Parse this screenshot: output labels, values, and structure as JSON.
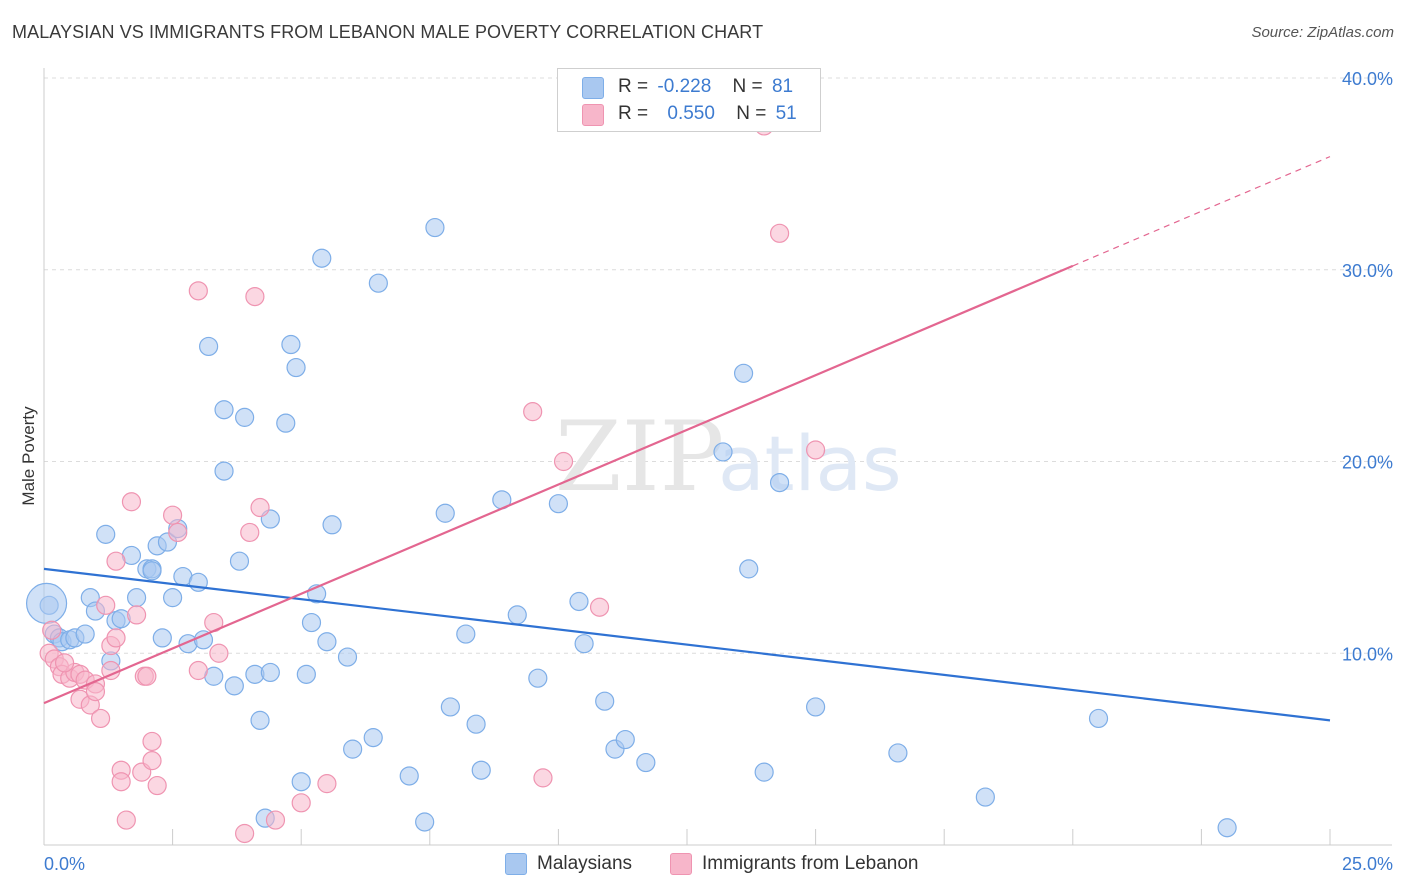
{
  "title": "MALAYSIAN VS IMMIGRANTS FROM LEBANON MALE POVERTY CORRELATION CHART",
  "source": "Source: ZipAtlas.com",
  "watermark": {
    "zip": "ZIP",
    "atlas": "atlas"
  },
  "legend": {
    "rows": [
      {
        "r_label": "R =",
        "r_value": "-0.228",
        "n_label": "N =",
        "n_value": "81"
      },
      {
        "r_label": "R =",
        "r_value": "0.550",
        "n_label": "N =",
        "n_value": "51"
      }
    ]
  },
  "bottom_legend": {
    "malaysians": "Malaysians",
    "lebanon": "Immigrants from Lebanon"
  },
  "colors": {
    "blue_fill": "#a9c8f0",
    "blue_stroke": "#7eaee8",
    "blue_line": "#2f72d3",
    "pink_fill": "#f7b6ca",
    "pink_stroke": "#ef94b1",
    "pink_line": "#e36690",
    "grid": "#dcdcdc",
    "axis_text": "#3d7bd0"
  },
  "chart_data": {
    "type": "scatter",
    "title": "MALAYSIAN VS IMMIGRANTS FROM LEBANON MALE POVERTY CORRELATION CHART",
    "xlabel": "",
    "ylabel": "Male Poverty",
    "xlim": [
      0,
      25
    ],
    "ylim": [
      0,
      40
    ],
    "x_tick_labels": [
      "0.0%",
      "25.0%"
    ],
    "y_ticks": [
      10,
      20,
      30,
      40
    ],
    "y_tick_labels": [
      "10.0%",
      "20.0%",
      "30.0%",
      "40.0%"
    ],
    "series": [
      {
        "name": "Malaysians",
        "r": -0.228,
        "n": 81,
        "trend": {
          "x0": 0,
          "y0": 14.4,
          "x1": 25,
          "y1": 6.5
        },
        "points": [
          [
            0.1,
            12.5
          ],
          [
            0.2,
            11.0
          ],
          [
            0.3,
            10.8
          ],
          [
            0.35,
            10.6
          ],
          [
            0.5,
            10.7
          ],
          [
            0.6,
            10.8
          ],
          [
            0.8,
            11.0
          ],
          [
            0.9,
            12.9
          ],
          [
            1.0,
            12.2
          ],
          [
            1.2,
            16.2
          ],
          [
            1.3,
            9.6
          ],
          [
            1.4,
            11.7
          ],
          [
            1.5,
            11.8
          ],
          [
            1.7,
            15.1
          ],
          [
            1.8,
            12.9
          ],
          [
            2.0,
            14.4
          ],
          [
            2.1,
            14.4
          ],
          [
            2.2,
            15.6
          ],
          [
            2.3,
            10.8
          ],
          [
            2.4,
            15.8
          ],
          [
            2.5,
            12.9
          ],
          [
            2.6,
            16.5
          ],
          [
            2.7,
            14.0
          ],
          [
            2.8,
            10.5
          ],
          [
            3.0,
            13.7
          ],
          [
            3.1,
            10.7
          ],
          [
            3.2,
            26.0
          ],
          [
            3.3,
            8.8
          ],
          [
            3.5,
            22.7
          ],
          [
            3.5,
            19.5
          ],
          [
            3.7,
            8.3
          ],
          [
            3.8,
            14.8
          ],
          [
            3.9,
            22.3
          ],
          [
            4.1,
            8.9
          ],
          [
            4.2,
            6.5
          ],
          [
            4.3,
            1.4
          ],
          [
            4.4,
            9.0
          ],
          [
            4.4,
            17.0
          ],
          [
            4.7,
            22.0
          ],
          [
            4.8,
            26.1
          ],
          [
            4.9,
            24.9
          ],
          [
            5.0,
            3.3
          ],
          [
            5.1,
            8.9
          ],
          [
            5.2,
            11.6
          ],
          [
            5.3,
            13.1
          ],
          [
            5.4,
            30.6
          ],
          [
            5.5,
            10.6
          ],
          [
            5.6,
            16.7
          ],
          [
            5.9,
            9.8
          ],
          [
            6.0,
            5.0
          ],
          [
            6.4,
            5.6
          ],
          [
            6.5,
            29.3
          ],
          [
            7.1,
            3.6
          ],
          [
            7.4,
            1.2
          ],
          [
            7.6,
            32.2
          ],
          [
            7.8,
            17.3
          ],
          [
            7.9,
            7.2
          ],
          [
            8.2,
            11.0
          ],
          [
            8.4,
            6.3
          ],
          [
            8.5,
            3.9
          ],
          [
            8.9,
            18.0
          ],
          [
            9.2,
            12.0
          ],
          [
            9.6,
            8.7
          ],
          [
            10.0,
            17.8
          ],
          [
            10.4,
            12.7
          ],
          [
            10.5,
            10.5
          ],
          [
            10.9,
            7.5
          ],
          [
            11.1,
            5.0
          ],
          [
            11.3,
            5.5
          ],
          [
            11.7,
            4.3
          ],
          [
            13.2,
            20.5
          ],
          [
            13.6,
            24.6
          ],
          [
            13.7,
            14.4
          ],
          [
            14.0,
            3.8
          ],
          [
            14.3,
            18.9
          ],
          [
            15.0,
            7.2
          ],
          [
            16.6,
            4.8
          ],
          [
            18.3,
            2.5
          ],
          [
            20.5,
            6.6
          ],
          [
            23.0,
            0.9
          ],
          [
            2.1,
            14.3
          ]
        ]
      },
      {
        "name": "Immigrants from Lebanon",
        "r": 0.55,
        "n": 51,
        "trend": {
          "x0": 0,
          "y0": 7.4,
          "x1": 20,
          "y1": 30.2,
          "dash_to_x": 25,
          "dash_to_y": 35.9
        },
        "points": [
          [
            0.1,
            10.0
          ],
          [
            0.2,
            9.7
          ],
          [
            0.3,
            9.3
          ],
          [
            0.35,
            8.9
          ],
          [
            0.5,
            8.7
          ],
          [
            0.6,
            9.0
          ],
          [
            0.7,
            8.9
          ],
          [
            0.7,
            7.6
          ],
          [
            0.8,
            8.6
          ],
          [
            0.9,
            7.3
          ],
          [
            1.0,
            8.4
          ],
          [
            1.0,
            8.0
          ],
          [
            1.1,
            6.6
          ],
          [
            1.2,
            12.5
          ],
          [
            1.3,
            10.4
          ],
          [
            1.3,
            9.1
          ],
          [
            1.4,
            10.8
          ],
          [
            1.4,
            14.8
          ],
          [
            1.5,
            3.9
          ],
          [
            1.5,
            3.3
          ],
          [
            1.6,
            1.3
          ],
          [
            1.7,
            17.9
          ],
          [
            1.8,
            12.0
          ],
          [
            1.9,
            3.8
          ],
          [
            1.95,
            8.8
          ],
          [
            2.0,
            8.8
          ],
          [
            2.1,
            5.4
          ],
          [
            2.1,
            4.4
          ],
          [
            2.2,
            3.1
          ],
          [
            2.5,
            17.2
          ],
          [
            2.6,
            16.3
          ],
          [
            3.0,
            28.9
          ],
          [
            3.0,
            9.1
          ],
          [
            3.3,
            11.6
          ],
          [
            3.4,
            10.0
          ],
          [
            3.9,
            0.6
          ],
          [
            4.0,
            16.3
          ],
          [
            4.1,
            28.6
          ],
          [
            4.2,
            17.6
          ],
          [
            4.5,
            1.3
          ],
          [
            5.0,
            2.2
          ],
          [
            5.5,
            3.2
          ],
          [
            9.5,
            22.6
          ],
          [
            9.7,
            3.5
          ],
          [
            10.1,
            20.0
          ],
          [
            10.8,
            12.4
          ],
          [
            14.0,
            37.5
          ],
          [
            14.3,
            31.9
          ],
          [
            15.0,
            20.6
          ],
          [
            0.15,
            11.2
          ],
          [
            0.4,
            9.5
          ]
        ]
      }
    ]
  }
}
